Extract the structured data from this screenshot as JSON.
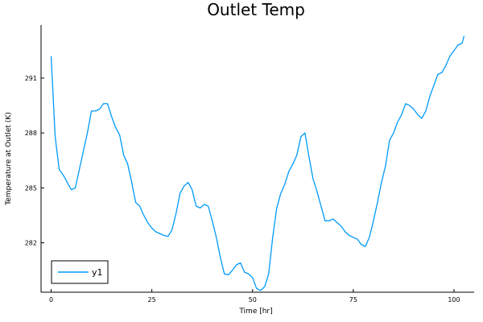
{
  "chart_data": {
    "type": "line",
    "title": "Outlet Temp",
    "xlabel": "Time [hr]",
    "ylabel": "Temperature at Outlet (K)",
    "xlim": [
      -2.5,
      105
    ],
    "ylim": [
      279.3,
      293.9
    ],
    "xticks": [
      0,
      25,
      50,
      75,
      100
    ],
    "yticks": [
      282,
      285,
      288,
      291
    ],
    "grid": false,
    "legend_position": "bottom-left",
    "series": [
      {
        "name": "y1",
        "color": "#009AFA",
        "x": [
          0,
          1,
          2,
          3,
          4,
          5,
          6,
          7,
          8,
          9,
          10,
          11,
          12,
          13,
          14,
          15,
          16,
          17,
          18,
          19,
          20,
          21,
          22,
          23,
          24,
          25,
          26,
          27,
          28,
          29,
          30,
          31,
          32,
          33,
          34,
          35,
          36,
          37,
          38,
          39,
          40,
          41,
          42,
          43,
          44,
          45,
          46,
          47,
          48,
          49,
          50,
          51,
          52,
          53,
          54,
          55,
          56,
          57,
          58,
          59,
          60,
          61,
          62,
          63,
          64,
          65,
          66,
          67,
          68,
          69,
          70,
          71,
          72,
          73,
          74,
          75,
          76,
          77,
          78,
          79,
          80,
          81,
          82,
          83,
          84,
          85,
          86,
          87,
          88,
          89,
          90,
          91,
          92,
          93,
          94,
          95,
          96,
          97,
          98,
          99,
          100,
          101,
          102,
          102.5
        ],
        "y": [
          292.2,
          287.8,
          286.0,
          285.7,
          285.3,
          284.9,
          285.0,
          286.0,
          287.0,
          288.0,
          289.2,
          289.2,
          289.3,
          289.6,
          289.6,
          288.9,
          288.3,
          287.9,
          286.8,
          286.3,
          285.3,
          284.2,
          284.0,
          283.5,
          283.1,
          282.8,
          282.6,
          282.5,
          282.4,
          282.35,
          282.7,
          283.6,
          284.7,
          285.1,
          285.3,
          284.9,
          284.0,
          283.9,
          284.1,
          284.0,
          283.2,
          282.3,
          281.2,
          280.3,
          280.25,
          280.5,
          280.8,
          280.9,
          280.4,
          280.3,
          280.1,
          279.5,
          279.4,
          279.6,
          280.3,
          282.3,
          283.9,
          284.7,
          285.2,
          285.9,
          286.3,
          286.8,
          287.8,
          288.0,
          286.7,
          285.5,
          284.8,
          284.0,
          283.2,
          283.2,
          283.3,
          283.1,
          282.9,
          282.6,
          282.4,
          282.3,
          282.2,
          281.9,
          281.8,
          282.3,
          283.2,
          284.2,
          285.3,
          286.2,
          287.6,
          288.0,
          288.6,
          289.0,
          289.6,
          289.5,
          289.3,
          289.0,
          288.8,
          289.2,
          290.0,
          290.6,
          291.2,
          291.3,
          291.7,
          292.2,
          292.5,
          292.8,
          292.9,
          293.3
        ]
      }
    ]
  }
}
